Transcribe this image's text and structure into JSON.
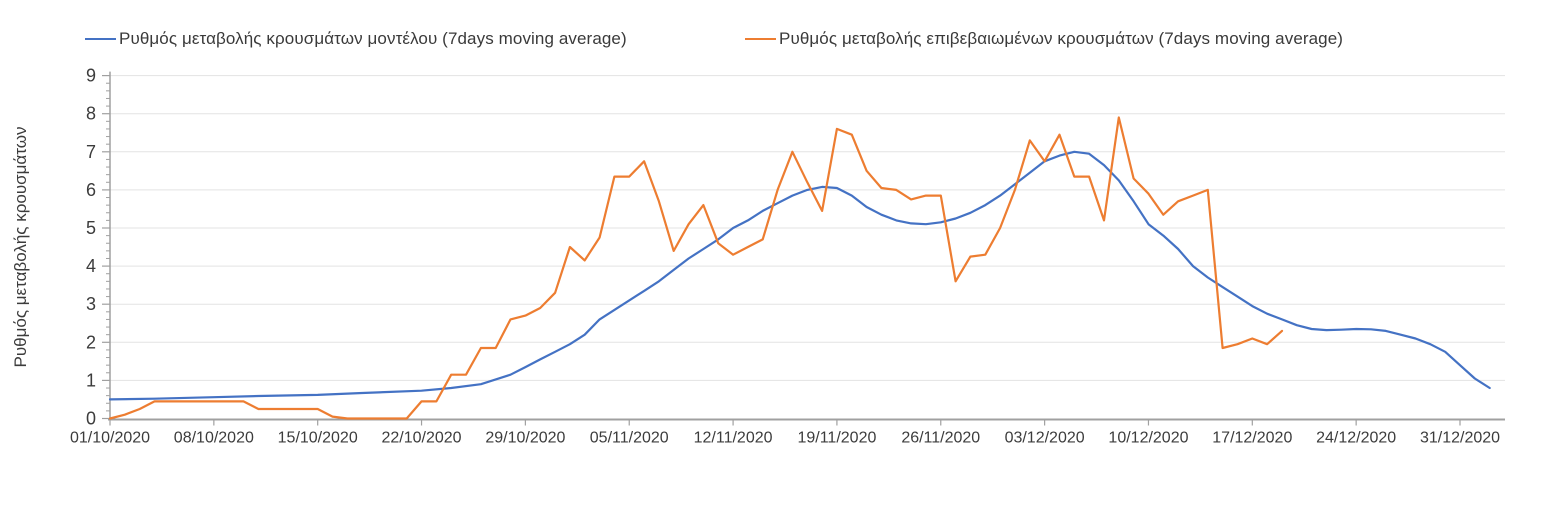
{
  "colors": {
    "series_model_blue": "#4472C4",
    "series_confirmed_orange": "#ED7D31",
    "gridline": "#e3e3e3",
    "axis_line": "#a0a0a0",
    "tick": "#a0a0a0",
    "tick_label_text": "#3c3c3c",
    "background": "#ffffff"
  },
  "legend": {
    "items": [
      {
        "label": "Ρυθμός μεταβολής κρουσμάτων μοντέλου (7days moving average)",
        "color": "#4472C4"
      },
      {
        "label": "Ρυθμός μεταβολής επιβεβαιωμένων κρουσμάτων (7days moving average)",
        "color": "#ED7D31"
      }
    ]
  },
  "chart_data": {
    "type": "line",
    "title": "",
    "xlabel": "",
    "ylabel": "Ρυθμός μεταβολής κρουσμάτων",
    "ylim": [
      0,
      9
    ],
    "y_ticks": [
      0,
      1,
      2,
      3,
      4,
      5,
      6,
      7,
      8,
      9
    ],
    "y_minor_tick_step": 0.2,
    "grid": "horizontal",
    "legend_position": "top",
    "x_tick_labels": [
      "01/10/2020",
      "08/10/2020",
      "15/10/2020",
      "22/10/2020",
      "29/10/2020",
      "05/11/2020",
      "12/11/2020",
      "19/11/2020",
      "26/11/2020",
      "03/12/2020",
      "10/12/2020",
      "17/12/2020",
      "24/12/2020",
      "31/12/2020"
    ],
    "series": [
      {
        "name": "Ρυθμός μεταβολής κρουσμάτων μοντέλου (7days moving average)",
        "color": "#4472C4",
        "points": [
          [
            "01/10/2020",
            0.5
          ],
          [
            "04/10/2020",
            0.52
          ],
          [
            "08/10/2020",
            0.56
          ],
          [
            "11/10/2020",
            0.59
          ],
          [
            "15/10/2020",
            0.62
          ],
          [
            "18/10/2020",
            0.67
          ],
          [
            "22/10/2020",
            0.73
          ],
          [
            "24/10/2020",
            0.8
          ],
          [
            "26/10/2020",
            0.9
          ],
          [
            "28/10/2020",
            1.15
          ],
          [
            "29/10/2020",
            1.35
          ],
          [
            "30/10/2020",
            1.55
          ],
          [
            "31/10/2020",
            1.75
          ],
          [
            "01/11/2020",
            1.95
          ],
          [
            "02/11/2020",
            2.2
          ],
          [
            "03/11/2020",
            2.6
          ],
          [
            "04/11/2020",
            2.85
          ],
          [
            "05/11/2020",
            3.1
          ],
          [
            "06/11/2020",
            3.35
          ],
          [
            "07/11/2020",
            3.6
          ],
          [
            "08/11/2020",
            3.9
          ],
          [
            "09/11/2020",
            4.2
          ],
          [
            "10/11/2020",
            4.45
          ],
          [
            "11/11/2020",
            4.7
          ],
          [
            "12/11/2020",
            5.0
          ],
          [
            "13/11/2020",
            5.2
          ],
          [
            "14/11/2020",
            5.45
          ],
          [
            "15/11/2020",
            5.65
          ],
          [
            "16/11/2020",
            5.85
          ],
          [
            "17/11/2020",
            6.0
          ],
          [
            "18/11/2020",
            6.08
          ],
          [
            "19/11/2020",
            6.05
          ],
          [
            "20/11/2020",
            5.85
          ],
          [
            "21/11/2020",
            5.55
          ],
          [
            "22/11/2020",
            5.35
          ],
          [
            "23/11/2020",
            5.2
          ],
          [
            "24/11/2020",
            5.12
          ],
          [
            "25/11/2020",
            5.1
          ],
          [
            "26/11/2020",
            5.15
          ],
          [
            "27/11/2020",
            5.25
          ],
          [
            "28/11/2020",
            5.4
          ],
          [
            "29/11/2020",
            5.6
          ],
          [
            "30/11/2020",
            5.85
          ],
          [
            "01/12/2020",
            6.15
          ],
          [
            "02/12/2020",
            6.45
          ],
          [
            "03/12/2020",
            6.75
          ],
          [
            "04/12/2020",
            6.9
          ],
          [
            "05/12/2020",
            7.0
          ],
          [
            "06/12/2020",
            6.95
          ],
          [
            "07/12/2020",
            6.65
          ],
          [
            "08/12/2020",
            6.25
          ],
          [
            "09/12/2020",
            5.7
          ],
          [
            "10/12/2020",
            5.1
          ],
          [
            "11/12/2020",
            4.8
          ],
          [
            "12/12/2020",
            4.45
          ],
          [
            "13/12/2020",
            4.0
          ],
          [
            "14/12/2020",
            3.7
          ],
          [
            "15/12/2020",
            3.45
          ],
          [
            "16/12/2020",
            3.2
          ],
          [
            "17/12/2020",
            2.95
          ],
          [
            "18/12/2020",
            2.75
          ],
          [
            "19/12/2020",
            2.6
          ],
          [
            "20/12/2020",
            2.45
          ],
          [
            "21/12/2020",
            2.35
          ],
          [
            "22/12/2020",
            2.32
          ],
          [
            "23/12/2020",
            2.33
          ],
          [
            "24/12/2020",
            2.35
          ],
          [
            "25/12/2020",
            2.34
          ],
          [
            "26/12/2020",
            2.3
          ],
          [
            "27/12/2020",
            2.2
          ],
          [
            "28/12/2020",
            2.1
          ],
          [
            "29/12/2020",
            1.95
          ],
          [
            "30/12/2020",
            1.75
          ],
          [
            "31/12/2020",
            1.4
          ],
          [
            "01/01/2021",
            1.05
          ],
          [
            "02/01/2021",
            0.8
          ]
        ]
      },
      {
        "name": "Ρυθμός μεταβολής επιβεβαιωμένων κρουσμάτων (7days moving average)",
        "color": "#ED7D31",
        "points": [
          [
            "01/10/2020",
            0.0
          ],
          [
            "02/10/2020",
            0.1
          ],
          [
            "03/10/2020",
            0.25
          ],
          [
            "04/10/2020",
            0.45
          ],
          [
            "05/10/2020",
            0.45
          ],
          [
            "06/10/2020",
            0.45
          ],
          [
            "07/10/2020",
            0.45
          ],
          [
            "08/10/2020",
            0.45
          ],
          [
            "09/10/2020",
            0.45
          ],
          [
            "10/10/2020",
            0.45
          ],
          [
            "11/10/2020",
            0.25
          ],
          [
            "12/10/2020",
            0.25
          ],
          [
            "13/10/2020",
            0.25
          ],
          [
            "14/10/2020",
            0.25
          ],
          [
            "15/10/2020",
            0.25
          ],
          [
            "16/10/2020",
            0.05
          ],
          [
            "17/10/2020",
            0.0
          ],
          [
            "18/10/2020",
            0.0
          ],
          [
            "19/10/2020",
            0.0
          ],
          [
            "20/10/2020",
            0.0
          ],
          [
            "21/10/2020",
            0.0
          ],
          [
            "22/10/2020",
            0.45
          ],
          [
            "23/10/2020",
            0.45
          ],
          [
            "24/10/2020",
            1.15
          ],
          [
            "25/10/2020",
            1.15
          ],
          [
            "26/10/2020",
            1.85
          ],
          [
            "27/10/2020",
            1.85
          ],
          [
            "28/10/2020",
            2.6
          ],
          [
            "29/10/2020",
            2.7
          ],
          [
            "30/10/2020",
            2.9
          ],
          [
            "31/10/2020",
            3.3
          ],
          [
            "01/11/2020",
            4.5
          ],
          [
            "02/11/2020",
            4.15
          ],
          [
            "03/11/2020",
            4.75
          ],
          [
            "04/11/2020",
            6.35
          ],
          [
            "05/11/2020",
            6.35
          ],
          [
            "06/11/2020",
            6.75
          ],
          [
            "07/11/2020",
            5.7
          ],
          [
            "08/11/2020",
            4.4
          ],
          [
            "09/11/2020",
            5.1
          ],
          [
            "10/11/2020",
            5.6
          ],
          [
            "11/11/2020",
            4.6
          ],
          [
            "12/11/2020",
            4.3
          ],
          [
            "13/11/2020",
            4.5
          ],
          [
            "14/11/2020",
            4.7
          ],
          [
            "15/11/2020",
            6.0
          ],
          [
            "16/11/2020",
            7.0
          ],
          [
            "17/11/2020",
            6.2
          ],
          [
            "18/11/2020",
            5.45
          ],
          [
            "19/11/2020",
            7.6
          ],
          [
            "20/11/2020",
            7.45
          ],
          [
            "21/11/2020",
            6.5
          ],
          [
            "22/11/2020",
            6.05
          ],
          [
            "23/11/2020",
            6.0
          ],
          [
            "24/11/2020",
            5.75
          ],
          [
            "25/11/2020",
            5.85
          ],
          [
            "26/11/2020",
            5.85
          ],
          [
            "27/11/2020",
            3.6
          ],
          [
            "28/11/2020",
            4.25
          ],
          [
            "29/11/2020",
            4.3
          ],
          [
            "30/11/2020",
            5.0
          ],
          [
            "01/12/2020",
            6.0
          ],
          [
            "02/12/2020",
            7.3
          ],
          [
            "03/12/2020",
            6.75
          ],
          [
            "04/12/2020",
            7.45
          ],
          [
            "05/12/2020",
            6.35
          ],
          [
            "06/12/2020",
            6.35
          ],
          [
            "07/12/2020",
            5.2
          ],
          [
            "08/12/2020",
            7.9
          ],
          [
            "09/12/2020",
            6.3
          ],
          [
            "10/12/2020",
            5.9
          ],
          [
            "11/12/2020",
            5.35
          ],
          [
            "12/12/2020",
            5.7
          ],
          [
            "13/12/2020",
            5.85
          ],
          [
            "14/12/2020",
            6.0
          ],
          [
            "15/12/2020",
            1.85
          ],
          [
            "16/12/2020",
            1.95
          ],
          [
            "17/12/2020",
            2.1
          ],
          [
            "18/12/2020",
            1.95
          ],
          [
            "19/12/2020",
            2.3
          ]
        ]
      }
    ]
  }
}
